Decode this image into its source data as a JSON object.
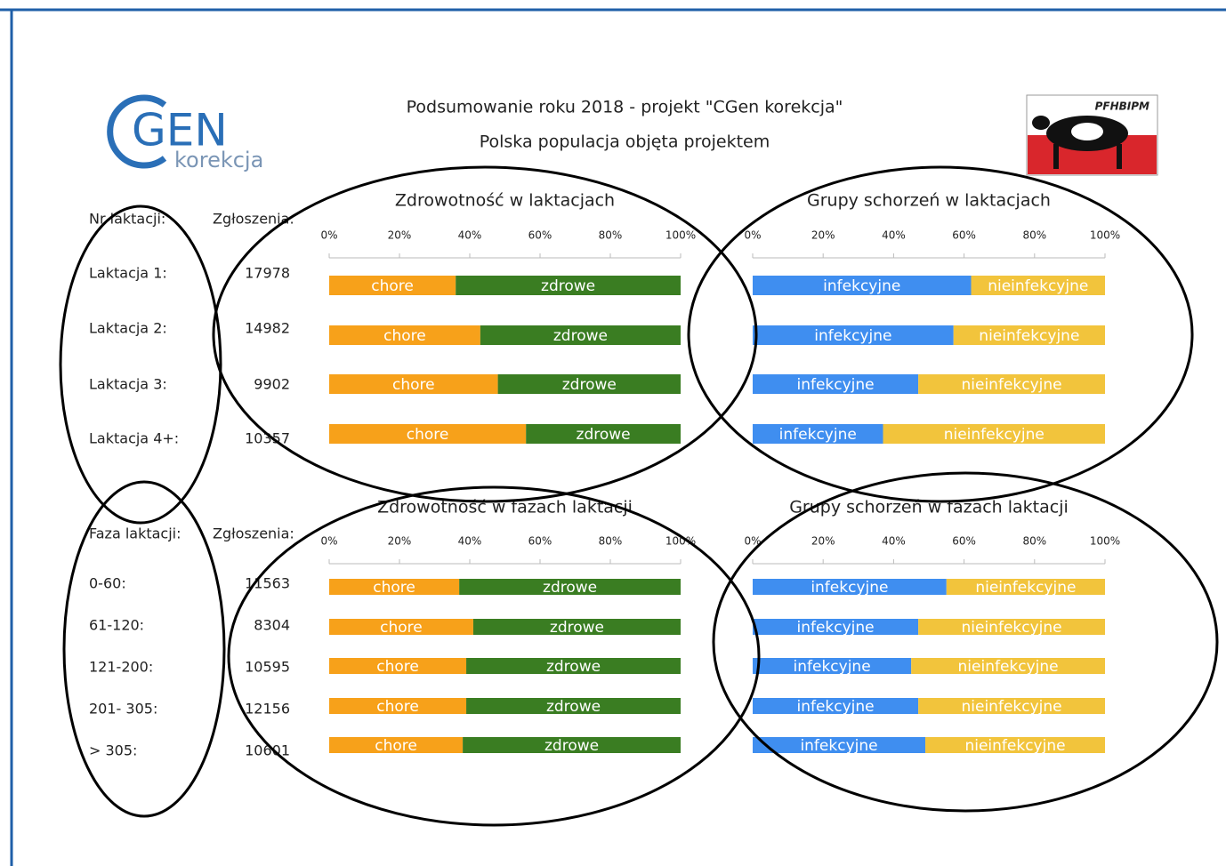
{
  "header": {
    "title": "Podsumowanie roku 2018 - projekt \"CGen korekcja\"",
    "subtitle": "Polska populacja objęta projektem",
    "logo": "GEN",
    "logo_sub": "korekcja",
    "badge": "PFHBIPM"
  },
  "tables": [
    {
      "headers": [
        "Nr laktacji:",
        "Zgłoszenia:"
      ],
      "rows": [
        [
          "Laktacja 1:",
          "17978"
        ],
        [
          "Laktacja 2:",
          "14982"
        ],
        [
          "Laktacja 3:",
          "9902"
        ],
        [
          "Laktacja 4+:",
          "10357"
        ]
      ]
    },
    {
      "headers": [
        "Faza laktacji:",
        "Zgłoszenia:"
      ],
      "rows": [
        [
          "0-60:",
          "11563"
        ],
        [
          "61-120:",
          "8304"
        ],
        [
          "121-200:",
          "10595"
        ],
        [
          "201- 305:",
          "12156"
        ],
        [
          "> 305:",
          "10601"
        ]
      ]
    }
  ],
  "chart_data": [
    {
      "type": "bar",
      "orientation": "horizontal",
      "stacked": true,
      "title": "Zdrowotność w laktacjach",
      "xlim": [
        0,
        100
      ],
      "xticks": [
        {
          "value": 0,
          "label": "0%"
        },
        {
          "value": 20,
          "label": "20%"
        },
        {
          "value": 40,
          "label": "40%"
        },
        {
          "value": 60,
          "label": "60%"
        },
        {
          "value": 80,
          "label": "80%"
        },
        {
          "value": 100,
          "label": "100%"
        }
      ],
      "series": [
        {
          "name": "chore",
          "color": "#f7a11a",
          "values": [
            36,
            43,
            48,
            56
          ]
        },
        {
          "name": "zdrowe",
          "color": "#3a7d22",
          "values": [
            64,
            57,
            52,
            44
          ]
        }
      ]
    },
    {
      "type": "bar",
      "orientation": "horizontal",
      "stacked": true,
      "title": "Grupy schorzeń w laktacjach",
      "xlim": [
        0,
        100
      ],
      "xticks": [
        {
          "value": 0,
          "label": "0%"
        },
        {
          "value": 20,
          "label": "20%"
        },
        {
          "value": 40,
          "label": "40%"
        },
        {
          "value": 60,
          "label": "60%"
        },
        {
          "value": 80,
          "label": "80%"
        },
        {
          "value": 100,
          "label": "100%"
        }
      ],
      "series": [
        {
          "name": "infekcyjne",
          "color": "#3f8ef0",
          "values": [
            62,
            57,
            47,
            37
          ]
        },
        {
          "name": "nieinfekcyjne",
          "color": "#f2c43c",
          "values": [
            38,
            43,
            53,
            63
          ]
        }
      ]
    },
    {
      "type": "bar",
      "orientation": "horizontal",
      "stacked": true,
      "title": "Zdrowotność w fazach laktacji",
      "xlim": [
        0,
        100
      ],
      "xticks": [
        {
          "value": 0,
          "label": "0%"
        },
        {
          "value": 20,
          "label": "20%"
        },
        {
          "value": 40,
          "label": "40%"
        },
        {
          "value": 60,
          "label": "60%"
        },
        {
          "value": 80,
          "label": "80%"
        },
        {
          "value": 100,
          "label": "100%"
        }
      ],
      "series": [
        {
          "name": "chore",
          "color": "#f7a11a",
          "values": [
            37,
            41,
            39,
            39,
            38
          ]
        },
        {
          "name": "zdrowe",
          "color": "#3a7d22",
          "values": [
            63,
            59,
            61,
            61,
            62
          ]
        }
      ]
    },
    {
      "type": "bar",
      "orientation": "horizontal",
      "stacked": true,
      "title": "Grupy schorzeń w fazach laktacji",
      "xlim": [
        0,
        100
      ],
      "xticks": [
        {
          "value": 0,
          "label": "0%"
        },
        {
          "value": 20,
          "label": "20%"
        },
        {
          "value": 40,
          "label": "40%"
        },
        {
          "value": 60,
          "label": "60%"
        },
        {
          "value": 80,
          "label": "80%"
        },
        {
          "value": 100,
          "label": "100%"
        }
      ],
      "series": [
        {
          "name": "infekcyjne",
          "color": "#3f8ef0",
          "values": [
            55,
            47,
            45,
            47,
            49
          ]
        },
        {
          "name": "nieinfekcyjne",
          "color": "#f2c43c",
          "values": [
            45,
            53,
            55,
            53,
            51
          ]
        }
      ]
    }
  ]
}
